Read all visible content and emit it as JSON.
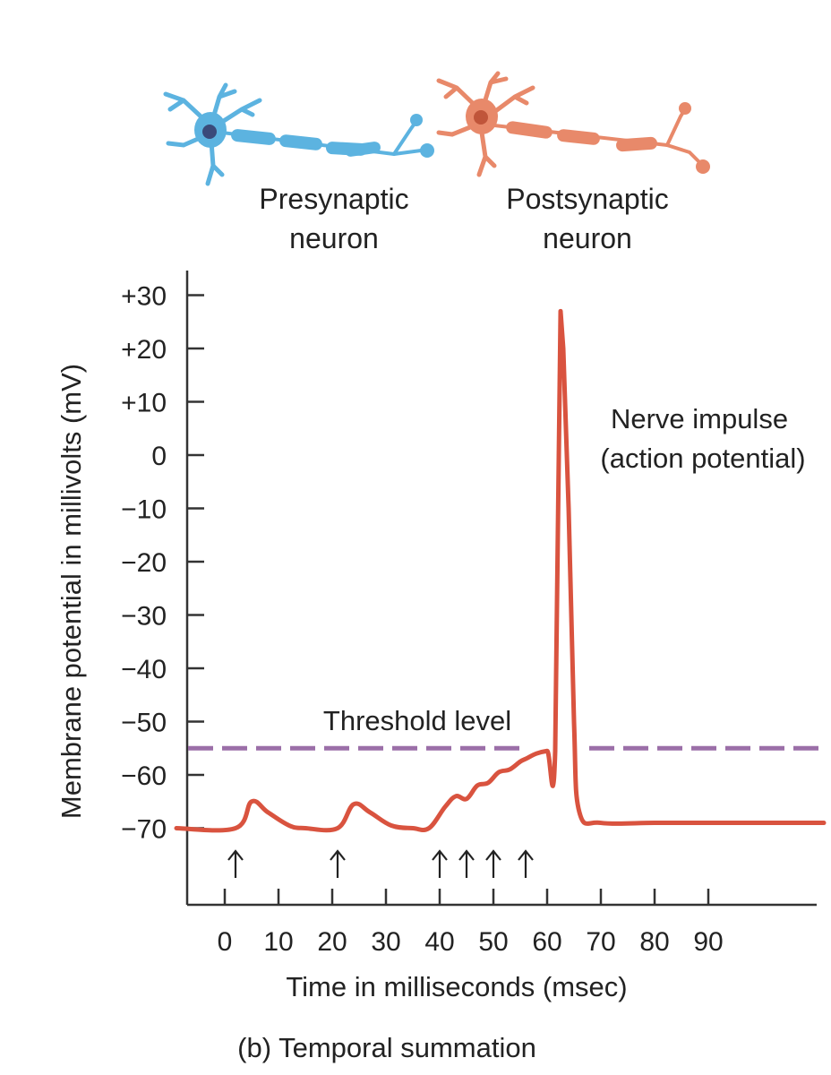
{
  "neurons": {
    "presynaptic": {
      "line1": "Presynaptic",
      "line2": "neuron",
      "color": "#5cb3e0",
      "nucleus_color": "#3a4a7a"
    },
    "postsynaptic": {
      "line1": "Postsynaptic",
      "line2": "neuron",
      "color": "#e8896a",
      "nucleus_color": "#c0553a"
    }
  },
  "annotations": {
    "threshold_label": "Threshold level",
    "impulse_line1": "Nerve impulse",
    "impulse_line2": "(action potential)"
  },
  "caption": "(b) Temporal summation",
  "colors": {
    "trace": "#d9533f",
    "threshold": "#9b6fa8",
    "axis": "#333333",
    "arrow": "#222222"
  },
  "chart_data": {
    "type": "line",
    "title": "(b) Temporal summation",
    "xlabel": "Time in milliseconds (msec)",
    "ylabel": "Membrane potential in millivolts (mV)",
    "xlim": [
      -7,
      110
    ],
    "ylim": [
      -85,
      36
    ],
    "x_ticks": [
      0,
      10,
      20,
      30,
      40,
      50,
      60,
      70,
      80,
      90
    ],
    "x_tick_labels": [
      "0",
      "10",
      "20",
      "30",
      "40",
      "50",
      "60",
      "70",
      "80",
      "90"
    ],
    "y_ticks": [
      30,
      20,
      10,
      0,
      -10,
      -20,
      -30,
      -40,
      -50,
      -60,
      -70
    ],
    "y_tick_labels": [
      "+30",
      "+20",
      "+10",
      "0",
      "−10",
      "−20",
      "−30",
      "−40",
      "−50",
      "−60",
      "−70"
    ],
    "grid": false,
    "threshold": {
      "label": "Threshold level",
      "value": -55,
      "style": "dashed"
    },
    "stimuli_ms": [
      2,
      21,
      40,
      45,
      50,
      56
    ],
    "series": [
      {
        "name": "Membrane potential",
        "x": [
          -9,
          2,
          5,
          8,
          12,
          15,
          21,
          24,
          27,
          31,
          35,
          38,
          41,
          43,
          45,
          47,
          49,
          51,
          53,
          55,
          56,
          58,
          60,
          61.5,
          62.5,
          63,
          64,
          65,
          66,
          70,
          80,
          90,
          100,
          112
        ],
        "y": [
          -70,
          -70,
          -65,
          -67,
          -69.5,
          -70,
          -70,
          -65.5,
          -67,
          -69.5,
          -70,
          -70,
          -66,
          -64,
          -64.5,
          -62,
          -61.5,
          -59.5,
          -59,
          -57.5,
          -57,
          -56,
          -55.5,
          -55.5,
          27,
          20,
          -10,
          -50,
          -67,
          -69,
          -69,
          -69,
          -69,
          -69
        ]
      }
    ],
    "annotations": [
      {
        "text": "Nerve impulse (action potential)",
        "x": 63,
        "y": 27
      },
      {
        "text": "Threshold level",
        "x": 40,
        "y": -55
      }
    ]
  }
}
